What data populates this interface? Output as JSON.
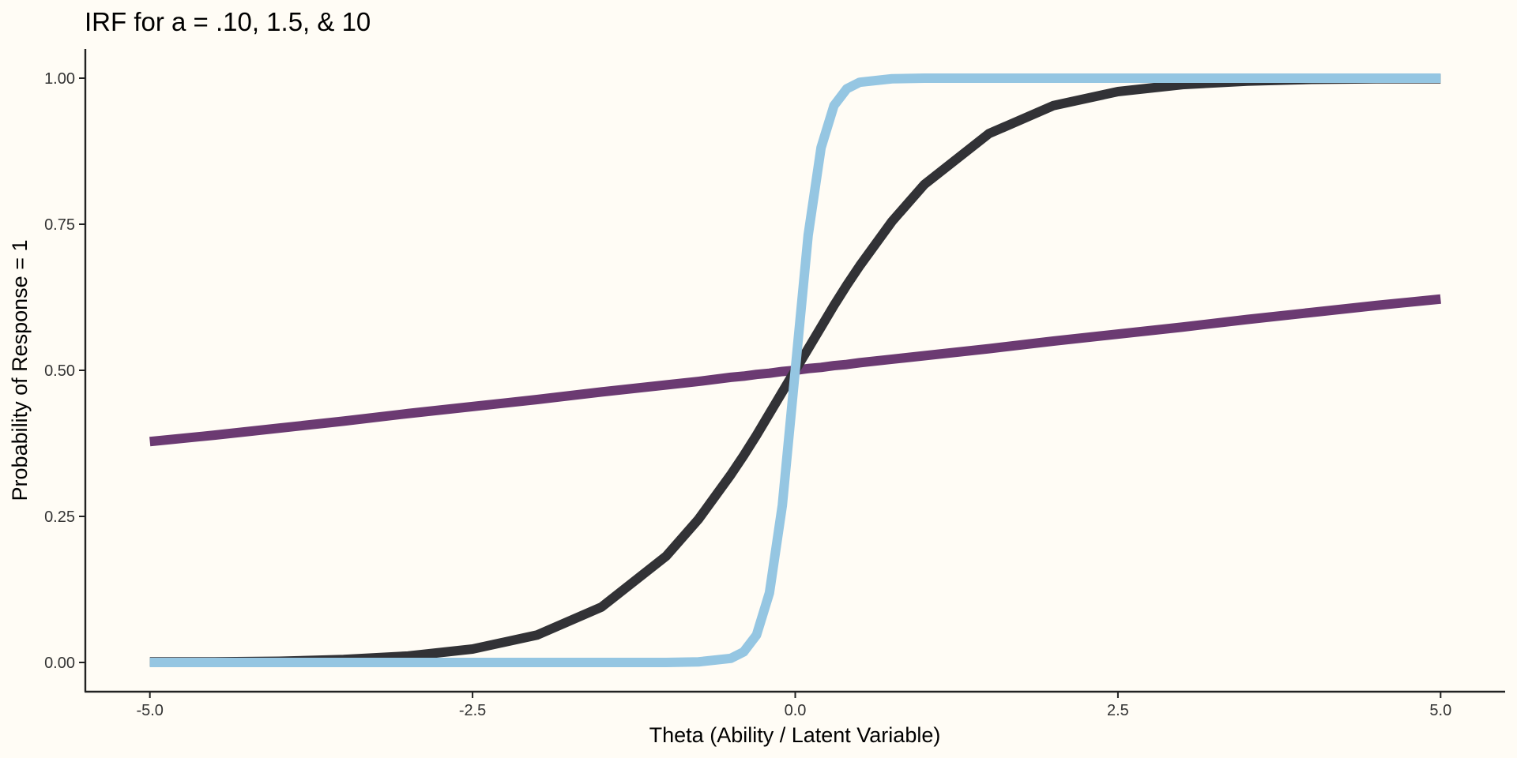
{
  "chart_data": {
    "type": "line",
    "title": "IRF for a = .10, 1.5, & 10",
    "xlabel": "Theta (Ability / Latent Variable)",
    "ylabel": "Probability of Response = 1",
    "xlim": [
      -5.5,
      5.5
    ],
    "ylim": [
      -0.05,
      1.05
    ],
    "x_ticks": [
      -5.0,
      -2.5,
      0.0,
      2.5,
      5.0
    ],
    "x_tick_labels": [
      "-5.0",
      "-2.5",
      "0.0",
      "2.5",
      "5.0"
    ],
    "y_ticks": [
      0.0,
      0.25,
      0.5,
      0.75,
      1.0
    ],
    "y_tick_labels": [
      "0.00",
      "0.25",
      "0.50",
      "0.75",
      "1.00"
    ],
    "grid": false,
    "legend": "none",
    "x": [
      -5.0,
      -4.5,
      -4.0,
      -3.5,
      -3.0,
      -2.5,
      -2.0,
      -1.5,
      -1.0,
      -0.75,
      -0.5,
      -0.4,
      -0.3,
      -0.2,
      -0.1,
      0.0,
      0.1,
      0.2,
      0.3,
      0.4,
      0.5,
      0.75,
      1.0,
      1.5,
      2.0,
      2.5,
      3.0,
      3.5,
      4.0,
      4.5,
      5.0
    ],
    "series": [
      {
        "color": "#6B3A72",
        "values": [
          0.378,
          0.389,
          0.401,
          0.413,
          0.426,
          0.438,
          0.45,
          0.463,
          0.475,
          0.481,
          0.488,
          0.49,
          0.493,
          0.495,
          0.498,
          0.5,
          0.503,
          0.505,
          0.508,
          0.51,
          0.513,
          0.519,
          0.525,
          0.537,
          0.55,
          0.562,
          0.574,
          0.587,
          0.599,
          0.611,
          0.622
        ]
      },
      {
        "color": "#323236",
        "values": [
          0.001,
          0.001,
          0.002,
          0.005,
          0.011,
          0.023,
          0.047,
          0.095,
          0.182,
          0.245,
          0.321,
          0.354,
          0.389,
          0.426,
          0.463,
          0.5,
          0.537,
          0.574,
          0.611,
          0.646,
          0.679,
          0.755,
          0.818,
          0.905,
          0.953,
          0.977,
          0.989,
          0.995,
          0.998,
          0.999,
          0.999
        ]
      },
      {
        "color": "#95C6E2",
        "values": [
          0.0,
          0.0,
          0.0,
          0.0,
          0.0,
          0.0,
          0.0,
          0.0,
          0.0,
          0.001,
          0.007,
          0.018,
          0.047,
          0.119,
          0.269,
          0.5,
          0.731,
          0.881,
          0.953,
          0.982,
          0.993,
          0.999,
          1.0,
          1.0,
          1.0,
          1.0,
          1.0,
          1.0,
          1.0,
          1.0,
          1.0
        ]
      }
    ]
  }
}
